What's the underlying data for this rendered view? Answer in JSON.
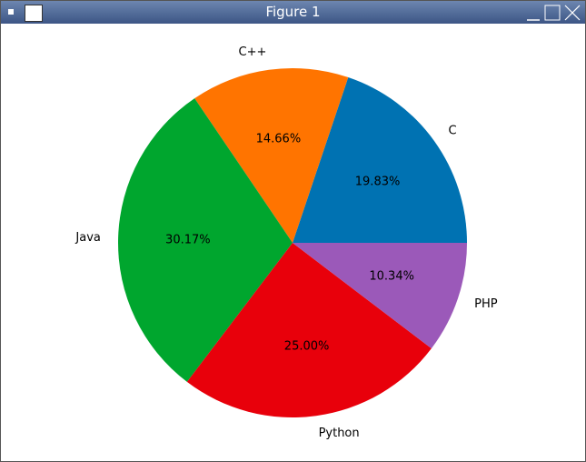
{
  "window": {
    "title": "Figure 1"
  },
  "chart_data": {
    "type": "pie",
    "categories": [
      "C",
      "C++",
      "Java",
      "Python",
      "PHP"
    ],
    "values": [
      19.83,
      14.66,
      30.17,
      25.0,
      10.34
    ],
    "value_labels": [
      "19.83%",
      "14.66%",
      "30.17%",
      "25.00%",
      "10.34%"
    ],
    "colors": [
      "#0072b2",
      "#ff7400",
      "#00a62e",
      "#e8000b",
      "#9b59b9"
    ]
  }
}
